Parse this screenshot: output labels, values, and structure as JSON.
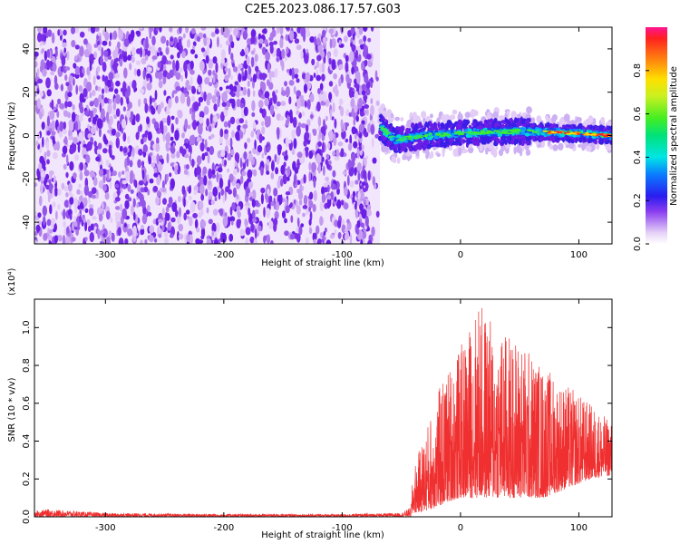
{
  "figure": {
    "title": "C2E5.2023.086.17.57.G03"
  },
  "chart_data": [
    {
      "type": "heatmap",
      "xlabel": "Height of straight line (km)",
      "ylabel": "Frequency (Hz)",
      "xlim": [
        -360,
        128
      ],
      "ylim": [
        -50,
        50
      ],
      "xticks": [
        -300,
        -200,
        -100,
        0,
        100
      ],
      "yticks": [
        -40,
        -20,
        0,
        20,
        40
      ],
      "colorbar": {
        "label": "Normalized spectral amplitude",
        "range": [
          0,
          1
        ],
        "ticks": [
          0.0,
          0.2,
          0.4,
          0.6,
          0.8
        ]
      },
      "noise_region_x": [
        -360,
        -68
      ],
      "signal": {
        "x_start": -68,
        "center_frequency_hz": [
          {
            "x": -68,
            "f": 4
          },
          {
            "x": -55,
            "f": -2
          },
          {
            "x": -30,
            "f": 0
          },
          {
            "x": 0,
            "f": 1
          },
          {
            "x": 50,
            "f": 2
          },
          {
            "x": 100,
            "f": 1
          },
          {
            "x": 128,
            "f": 0
          }
        ],
        "peak_amplitude_near_x": [
          70,
          128
        ]
      }
    },
    {
      "type": "line",
      "xlabel": "Height of straight line (km)",
      "ylabel": "SNR (10 * v/v)",
      "scale_note": "(x10⁴)",
      "xlim": [
        -360,
        128
      ],
      "ylim": [
        0,
        1.15
      ],
      "xticks": [
        -300,
        -200,
        -100,
        0,
        100
      ],
      "yticks": [
        "0.0",
        "0.2",
        "0.4",
        "0.6",
        "0.8",
        "1.0"
      ],
      "color": "#f03030",
      "envelope": [
        {
          "x": -360,
          "lo": 0.0,
          "hi": 0.03
        },
        {
          "x": -350,
          "lo": 0.0,
          "hi": 0.04
        },
        {
          "x": -300,
          "lo": 0.0,
          "hi": 0.02
        },
        {
          "x": -200,
          "lo": 0.0,
          "hi": 0.015
        },
        {
          "x": -100,
          "lo": 0.0,
          "hi": 0.015
        },
        {
          "x": -50,
          "lo": 0.0,
          "hi": 0.02
        },
        {
          "x": -42,
          "lo": 0.0,
          "hi": 0.05
        },
        {
          "x": -40,
          "lo": 0.02,
          "hi": 0.25
        },
        {
          "x": -30,
          "lo": 0.03,
          "hi": 0.45
        },
        {
          "x": -20,
          "lo": 0.05,
          "hi": 0.65
        },
        {
          "x": -10,
          "lo": 0.08,
          "hi": 0.8
        },
        {
          "x": 0,
          "lo": 0.1,
          "hi": 0.9
        },
        {
          "x": 10,
          "lo": 0.1,
          "hi": 1.05
        },
        {
          "x": 15,
          "lo": 0.1,
          "hi": 1.15
        },
        {
          "x": 30,
          "lo": 0.1,
          "hi": 1.0
        },
        {
          "x": 50,
          "lo": 0.1,
          "hi": 0.95
        },
        {
          "x": 70,
          "lo": 0.1,
          "hi": 0.8
        },
        {
          "x": 90,
          "lo": 0.15,
          "hi": 0.7
        },
        {
          "x": 110,
          "lo": 0.2,
          "hi": 0.6
        },
        {
          "x": 128,
          "lo": 0.22,
          "hi": 0.5
        }
      ]
    }
  ]
}
